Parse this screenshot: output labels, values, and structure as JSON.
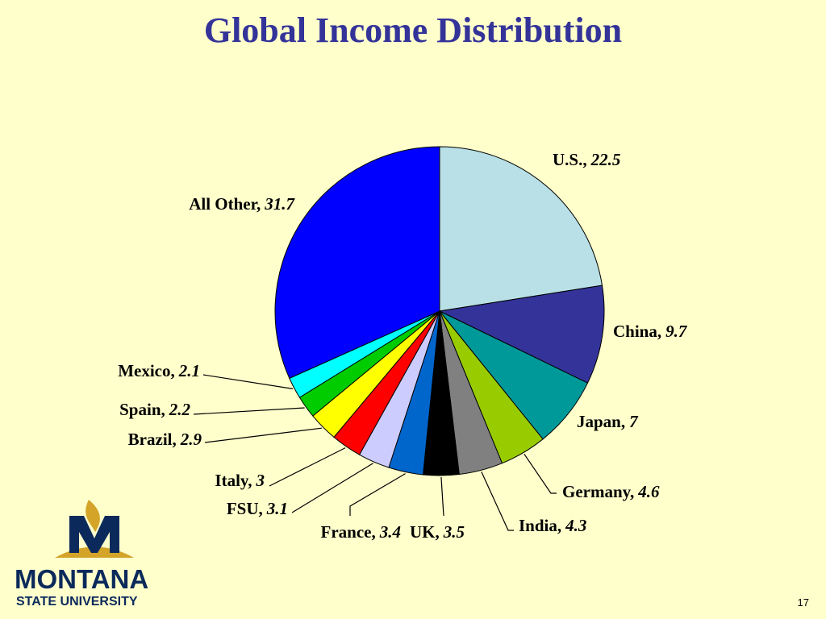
{
  "chart_data": {
    "type": "pie",
    "title": "Global Income Distribution",
    "categories": [
      "U.S.,",
      "China,",
      "Japan,",
      "Germany,",
      "India,",
      "UK,",
      "France,",
      "FSU,",
      "Italy,",
      "Brazil,",
      "Spain,",
      "Mexico,",
      "All Other,"
    ],
    "values": [
      22.5,
      9.7,
      7,
      4.6,
      4.3,
      3.5,
      3.4,
      3.1,
      3,
      2.9,
      2.2,
      2.1,
      31.7
    ],
    "colors": [
      "#b8e0e6",
      "#333399",
      "#009999",
      "#99cc00",
      "#808080",
      "#000000",
      "#0066cc",
      "#ccccff",
      "#ff0000",
      "#ffff00",
      "#00cc00",
      "#00ffff",
      "#0000ff"
    ]
  },
  "footer": {
    "logo_line1": "MONTANA",
    "logo_line2": "STATE UNIVERSITY",
    "page_number": "17"
  }
}
